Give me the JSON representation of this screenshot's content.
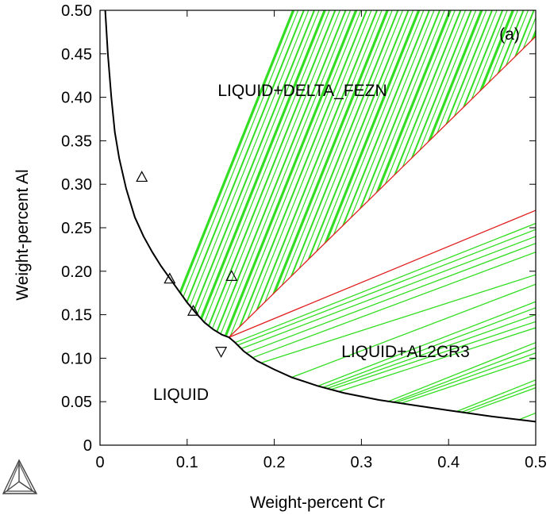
{
  "chart_data": {
    "type": "phase-diagram",
    "panel_label": "(a)",
    "xlabel": "Weight-percent Cr",
    "ylabel": "Weight-percent Al",
    "xlim": [
      0,
      0.5
    ],
    "ylim": [
      0,
      0.5
    ],
    "x_ticks": [
      0,
      0.1,
      0.2,
      0.3,
      0.4,
      0.5
    ],
    "x_tick_labels": [
      "0",
      "0.1",
      "0.2",
      "0.3",
      "0.4",
      "0.5"
    ],
    "y_ticks": [
      0,
      0.05,
      0.1,
      0.15,
      0.2,
      0.25,
      0.3,
      0.35,
      0.4,
      0.45,
      0.5
    ],
    "y_tick_labels": [
      "0",
      "0.05",
      "0.10",
      "0.15",
      "0.20",
      "0.25",
      "0.30",
      "0.35",
      "0.40",
      "0.45",
      "0.50"
    ],
    "regions": [
      {
        "label": "LIQUID+DELTA_FEZN",
        "at": [
          0.184,
          0.408
        ]
      },
      {
        "label": "LIQUID+AL2CR3",
        "at": [
          0.349,
          0.107
        ]
      },
      {
        "label": "LIQUID",
        "at": [
          0.093,
          0.057
        ]
      }
    ],
    "liquidus_boundary": {
      "color": "#000000",
      "points": [
        [
          0.006,
          0.5
        ],
        [
          0.009,
          0.45
        ],
        [
          0.013,
          0.4
        ],
        [
          0.017,
          0.36
        ],
        [
          0.022,
          0.33
        ],
        [
          0.03,
          0.295
        ],
        [
          0.04,
          0.262
        ],
        [
          0.05,
          0.24
        ],
        [
          0.06,
          0.222
        ],
        [
          0.07,
          0.206
        ],
        [
          0.08,
          0.192
        ],
        [
          0.09,
          0.178
        ],
        [
          0.1,
          0.164
        ],
        [
          0.11,
          0.152
        ],
        [
          0.12,
          0.141
        ],
        [
          0.13,
          0.133
        ],
        [
          0.14,
          0.127
        ],
        [
          0.148,
          0.124
        ],
        [
          0.155,
          0.118
        ],
        [
          0.165,
          0.108
        ],
        [
          0.18,
          0.097
        ],
        [
          0.2,
          0.087
        ],
        [
          0.22,
          0.078
        ],
        [
          0.25,
          0.068
        ],
        [
          0.28,
          0.06
        ],
        [
          0.32,
          0.052
        ],
        [
          0.36,
          0.046
        ],
        [
          0.4,
          0.04
        ],
        [
          0.45,
          0.033
        ],
        [
          0.5,
          0.027
        ]
      ]
    },
    "phase_boundaries": [
      {
        "color": "#e02020",
        "points": [
          [
            0.148,
            0.124
          ],
          [
            0.5,
            0.47
          ]
        ]
      },
      {
        "color": "#e02020",
        "points": [
          [
            0.148,
            0.124
          ],
          [
            0.5,
            0.27
          ]
        ]
      }
    ],
    "tie_line_color": "#33dd22",
    "tie_lines_delta_fezn": {
      "x_start": [
        0.0,
        0.012,
        0.024,
        0.036,
        0.048,
        0.06,
        0.072,
        0.084,
        0.096,
        0.108,
        0.12,
        0.132,
        0.144,
        0.156,
        0.168,
        0.18,
        0.192,
        0.204,
        0.216,
        0.228,
        0.24,
        0.252,
        0.264,
        0.276,
        0.288,
        0.3,
        0.312,
        0.324,
        0.336,
        0.348,
        0.36,
        0.372,
        0.384,
        0.396,
        0.408,
        0.42
      ],
      "slope": 2.5
    },
    "tie_lines_al2cr3": [
      {
        "x0": 0.155,
        "y0": 0.118,
        "x1": 0.5,
        "y1": 0.255
      },
      {
        "x0": 0.158,
        "y0": 0.115,
        "x1": 0.5,
        "y1": 0.248
      },
      {
        "x0": 0.162,
        "y0": 0.111,
        "x1": 0.5,
        "y1": 0.24
      },
      {
        "x0": 0.168,
        "y0": 0.106,
        "x1": 0.5,
        "y1": 0.232
      },
      {
        "x0": 0.176,
        "y0": 0.101,
        "x1": 0.5,
        "y1": 0.222
      },
      {
        "x0": 0.186,
        "y0": 0.095,
        "x1": 0.5,
        "y1": 0.196
      },
      {
        "x0": 0.22,
        "y0": 0.078,
        "x1": 0.5,
        "y1": 0.185
      },
      {
        "x0": 0.25,
        "y0": 0.068,
        "x1": 0.5,
        "y1": 0.165
      },
      {
        "x0": 0.255,
        "y0": 0.066,
        "x1": 0.5,
        "y1": 0.158
      },
      {
        "x0": 0.26,
        "y0": 0.065,
        "x1": 0.5,
        "y1": 0.15
      },
      {
        "x0": 0.265,
        "y0": 0.064,
        "x1": 0.5,
        "y1": 0.142
      },
      {
        "x0": 0.275,
        "y0": 0.062,
        "x1": 0.5,
        "y1": 0.135
      },
      {
        "x0": 0.33,
        "y0": 0.05,
        "x1": 0.5,
        "y1": 0.118
      },
      {
        "x0": 0.335,
        "y0": 0.049,
        "x1": 0.5,
        "y1": 0.112
      },
      {
        "x0": 0.34,
        "y0": 0.049,
        "x1": 0.5,
        "y1": 0.106
      },
      {
        "x0": 0.345,
        "y0": 0.048,
        "x1": 0.5,
        "y1": 0.1
      },
      {
        "x0": 0.41,
        "y0": 0.039,
        "x1": 0.5,
        "y1": 0.075
      },
      {
        "x0": 0.415,
        "y0": 0.038,
        "x1": 0.5,
        "y1": 0.07
      },
      {
        "x0": 0.42,
        "y0": 0.037,
        "x1": 0.5,
        "y1": 0.066
      },
      {
        "x0": 0.48,
        "y0": 0.029,
        "x1": 0.5,
        "y1": 0.037
      }
    ],
    "markers_up": [
      [
        0.048,
        0.308
      ],
      [
        0.08,
        0.191
      ],
      [
        0.107,
        0.154
      ],
      [
        0.151,
        0.194
      ]
    ],
    "markers_down": [
      [
        0.139,
        0.108
      ]
    ]
  },
  "logo": {
    "name": "thermo-calc-tetrahedron-logo"
  }
}
